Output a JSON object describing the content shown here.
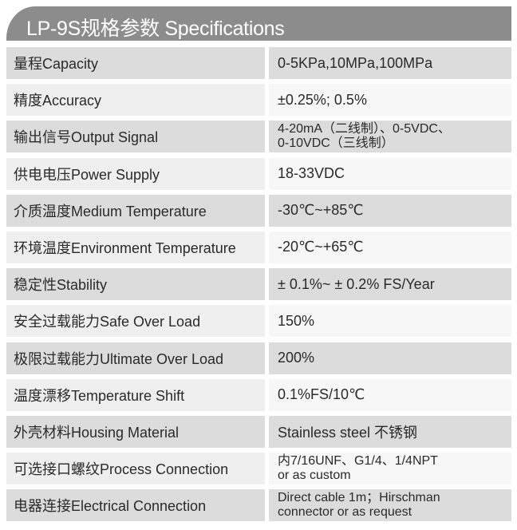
{
  "title": "LP-9S规格参数 Specifications",
  "colors": {
    "header": "#8c8c8c",
    "row_dark": "#dcdcdc",
    "row_light": "#efefef"
  },
  "specs": [
    {
      "label": "量程Capacity",
      "value": "0-5KPa,10MPa,100MPa"
    },
    {
      "label": "精度Accuracy",
      "value": "±0.25%; 0.5%"
    },
    {
      "label": "输出信号Output Signal",
      "value": "4-20mA（二线制）、0-5VDC、\n0-10VDC（三线制）"
    },
    {
      "label": "供电电压Power Supply",
      "value": "18-33VDC"
    },
    {
      "label": "介质温度Medium Temperature",
      "value": "-30℃~+85℃"
    },
    {
      "label": "环境温度Environment Temperature",
      "value": "-20℃~+65℃"
    },
    {
      "label": "稳定性Stability",
      "value": "± 0.1%~ ± 0.2% FS/Year"
    },
    {
      "label": "安全过载能力Safe Over Load",
      "value": "150%"
    },
    {
      "label": "极限过载能力Ultimate Over Load",
      "value": "200%"
    },
    {
      "label": "温度漂移Temperature Shift",
      "value": "0.1%FS/10℃"
    },
    {
      "label": "外壳材料Housing Material",
      "value": "Stainless steel 不锈钢"
    },
    {
      "label": "可选接口螺纹Process Connection",
      "value": "内7/16UNF、G1/4、1/4NPT\nor as custom"
    },
    {
      "label": "电器连接Electrical Connection",
      "value": "Direct cable 1m；Hirschman\nconnector or as request"
    }
  ]
}
